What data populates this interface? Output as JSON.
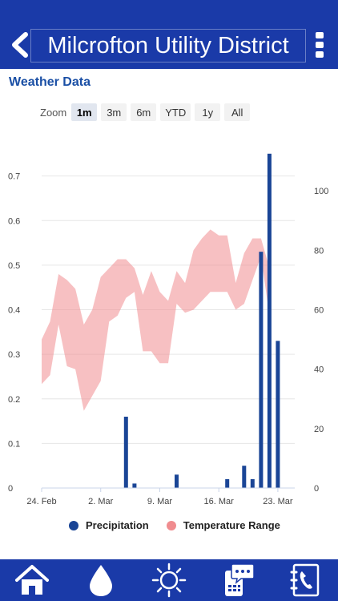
{
  "header": {
    "title": "Milcrofton Utility District",
    "back_icon": "chevron-left-icon",
    "menu_icon": "kebab-menu-icon"
  },
  "section_title": "Weather Data",
  "zoom": {
    "label": "Zoom",
    "options": [
      "1m",
      "3m",
      "6m",
      "YTD",
      "1y",
      "All"
    ],
    "selected": "1m"
  },
  "chart_data": {
    "type": "bar",
    "title": "",
    "series": [
      {
        "name": "Precipitation",
        "type": "bar",
        "axis": "left",
        "color": "#1a4596",
        "points": [
          {
            "date": "2024-03-05",
            "value": 0.16
          },
          {
            "date": "2024-03-06",
            "value": 0.01
          },
          {
            "date": "2024-03-11",
            "value": 0.03
          },
          {
            "date": "2024-03-17",
            "value": 0.02
          },
          {
            "date": "2024-03-19",
            "value": 0.05
          },
          {
            "date": "2024-03-20",
            "value": 0.02
          },
          {
            "date": "2024-03-21",
            "value": 0.53
          },
          {
            "date": "2024-03-22",
            "value": 0.75
          },
          {
            "date": "2024-03-23",
            "value": 0.33
          }
        ]
      },
      {
        "name": "Temperature Range",
        "type": "arearange",
        "axis": "right",
        "color": "#f08c8f",
        "points": [
          {
            "date": "2024-02-24",
            "low": 35,
            "high": 50
          },
          {
            "date": "2024-02-25",
            "low": 38,
            "high": 56
          },
          {
            "date": "2024-02-26",
            "low": 55,
            "high": 72
          },
          {
            "date": "2024-02-27",
            "low": 41,
            "high": 70
          },
          {
            "date": "2024-02-28",
            "low": 40,
            "high": 67
          },
          {
            "date": "2024-02-29",
            "low": 26,
            "high": 55
          },
          {
            "date": "2024-03-01",
            "low": 31,
            "high": 60
          },
          {
            "date": "2024-03-02",
            "low": 36,
            "high": 71
          },
          {
            "date": "2024-03-03",
            "low": 56,
            "high": 74
          },
          {
            "date": "2024-03-04",
            "low": 58,
            "high": 77
          },
          {
            "date": "2024-03-05",
            "low": 64,
            "high": 77
          },
          {
            "date": "2024-03-06",
            "low": 66,
            "high": 74
          },
          {
            "date": "2024-03-07",
            "low": 46,
            "high": 65
          },
          {
            "date": "2024-03-08",
            "low": 46,
            "high": 73
          },
          {
            "date": "2024-03-09",
            "low": 42,
            "high": 66
          },
          {
            "date": "2024-03-10",
            "low": 42,
            "high": 63
          },
          {
            "date": "2024-03-11",
            "low": 62,
            "high": 73
          },
          {
            "date": "2024-03-12",
            "low": 59,
            "high": 69
          },
          {
            "date": "2024-03-13",
            "low": 60,
            "high": 80
          },
          {
            "date": "2024-03-14",
            "low": 63,
            "high": 84
          },
          {
            "date": "2024-03-15",
            "low": 66,
            "high": 87
          },
          {
            "date": "2024-03-16",
            "low": 66,
            "high": 85
          },
          {
            "date": "2024-03-17",
            "low": 66,
            "high": 85
          },
          {
            "date": "2024-03-18",
            "low": 60,
            "high": 69
          },
          {
            "date": "2024-03-19",
            "low": 62,
            "high": 79
          },
          {
            "date": "2024-03-20",
            "low": 70,
            "high": 84
          },
          {
            "date": "2024-03-21",
            "low": 78,
            "high": 84
          },
          {
            "date": "2024-03-22",
            "low": 58,
            "high": 74
          }
        ]
      }
    ],
    "x_axis": {
      "range": [
        "2024-02-24",
        "2024-03-25"
      ],
      "tick_labels": [
        {
          "date": "2024-02-24",
          "label": "24. Feb"
        },
        {
          "date": "2024-03-02",
          "label": "2. Mar"
        },
        {
          "date": "2024-03-09",
          "label": "9. Mar"
        },
        {
          "date": "2024-03-16",
          "label": "16. Mar"
        },
        {
          "date": "2024-03-23",
          "label": "23. Mar"
        }
      ]
    },
    "y_left": {
      "range": [
        0,
        0.8
      ],
      "ticks": [
        "0",
        "0.1",
        "0.2",
        "0.3",
        "0.4",
        "0.5",
        "0.6",
        "0.7"
      ]
    },
    "y_right": {
      "range": [
        0,
        120
      ],
      "ticks": [
        "0",
        "20",
        "40",
        "60",
        "80",
        "100"
      ]
    },
    "grid": true,
    "legend_position": "bottom"
  },
  "legend": {
    "precipitation": "Precipitation",
    "temperature": "Temperature Range",
    "precip_color": "#1a4596",
    "temp_color": "#f08c8f"
  },
  "tabbar": {
    "tabs": [
      {
        "name": "home",
        "icon": "house-icon"
      },
      {
        "name": "water",
        "icon": "water-drop-icon"
      },
      {
        "name": "weather",
        "icon": "sun-icon"
      },
      {
        "name": "messages",
        "icon": "chat-phone-icon"
      },
      {
        "name": "contact",
        "icon": "contact-book-icon"
      }
    ]
  }
}
